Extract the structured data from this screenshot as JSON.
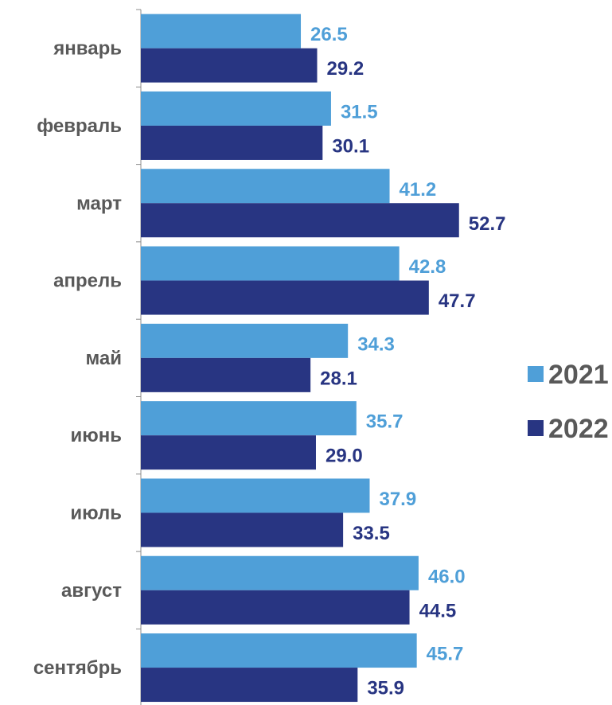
{
  "chart_data": {
    "type": "bar",
    "orientation": "horizontal",
    "categories": [
      "январь",
      "февраль",
      "март",
      "апрель",
      "май",
      "июнь",
      "июль",
      "август",
      "сентябрь"
    ],
    "series": [
      {
        "name": "2021",
        "color": "#4f9fd8",
        "values": [
          26.5,
          31.5,
          41.2,
          42.8,
          34.3,
          35.7,
          37.9,
          46.0,
          45.7
        ]
      },
      {
        "name": "2022",
        "color": "#283582",
        "values": [
          29.2,
          30.1,
          52.7,
          47.7,
          28.1,
          29.0,
          33.5,
          44.5,
          35.9
        ]
      }
    ],
    "value_labels": [
      [
        "26.5",
        "31.5",
        "41.2",
        "42.8",
        "34.3",
        "35.7",
        "37.9",
        "46.0",
        "45.7"
      ],
      [
        "29.2",
        "30.1",
        "52.7",
        "47.7",
        "28.1",
        "29.0",
        "33.5",
        "44.5",
        "35.9"
      ]
    ],
    "title": "",
    "xlabel": "",
    "ylabel": "",
    "xlim": [
      0,
      60
    ],
    "grid": false,
    "legend_position": "right"
  }
}
